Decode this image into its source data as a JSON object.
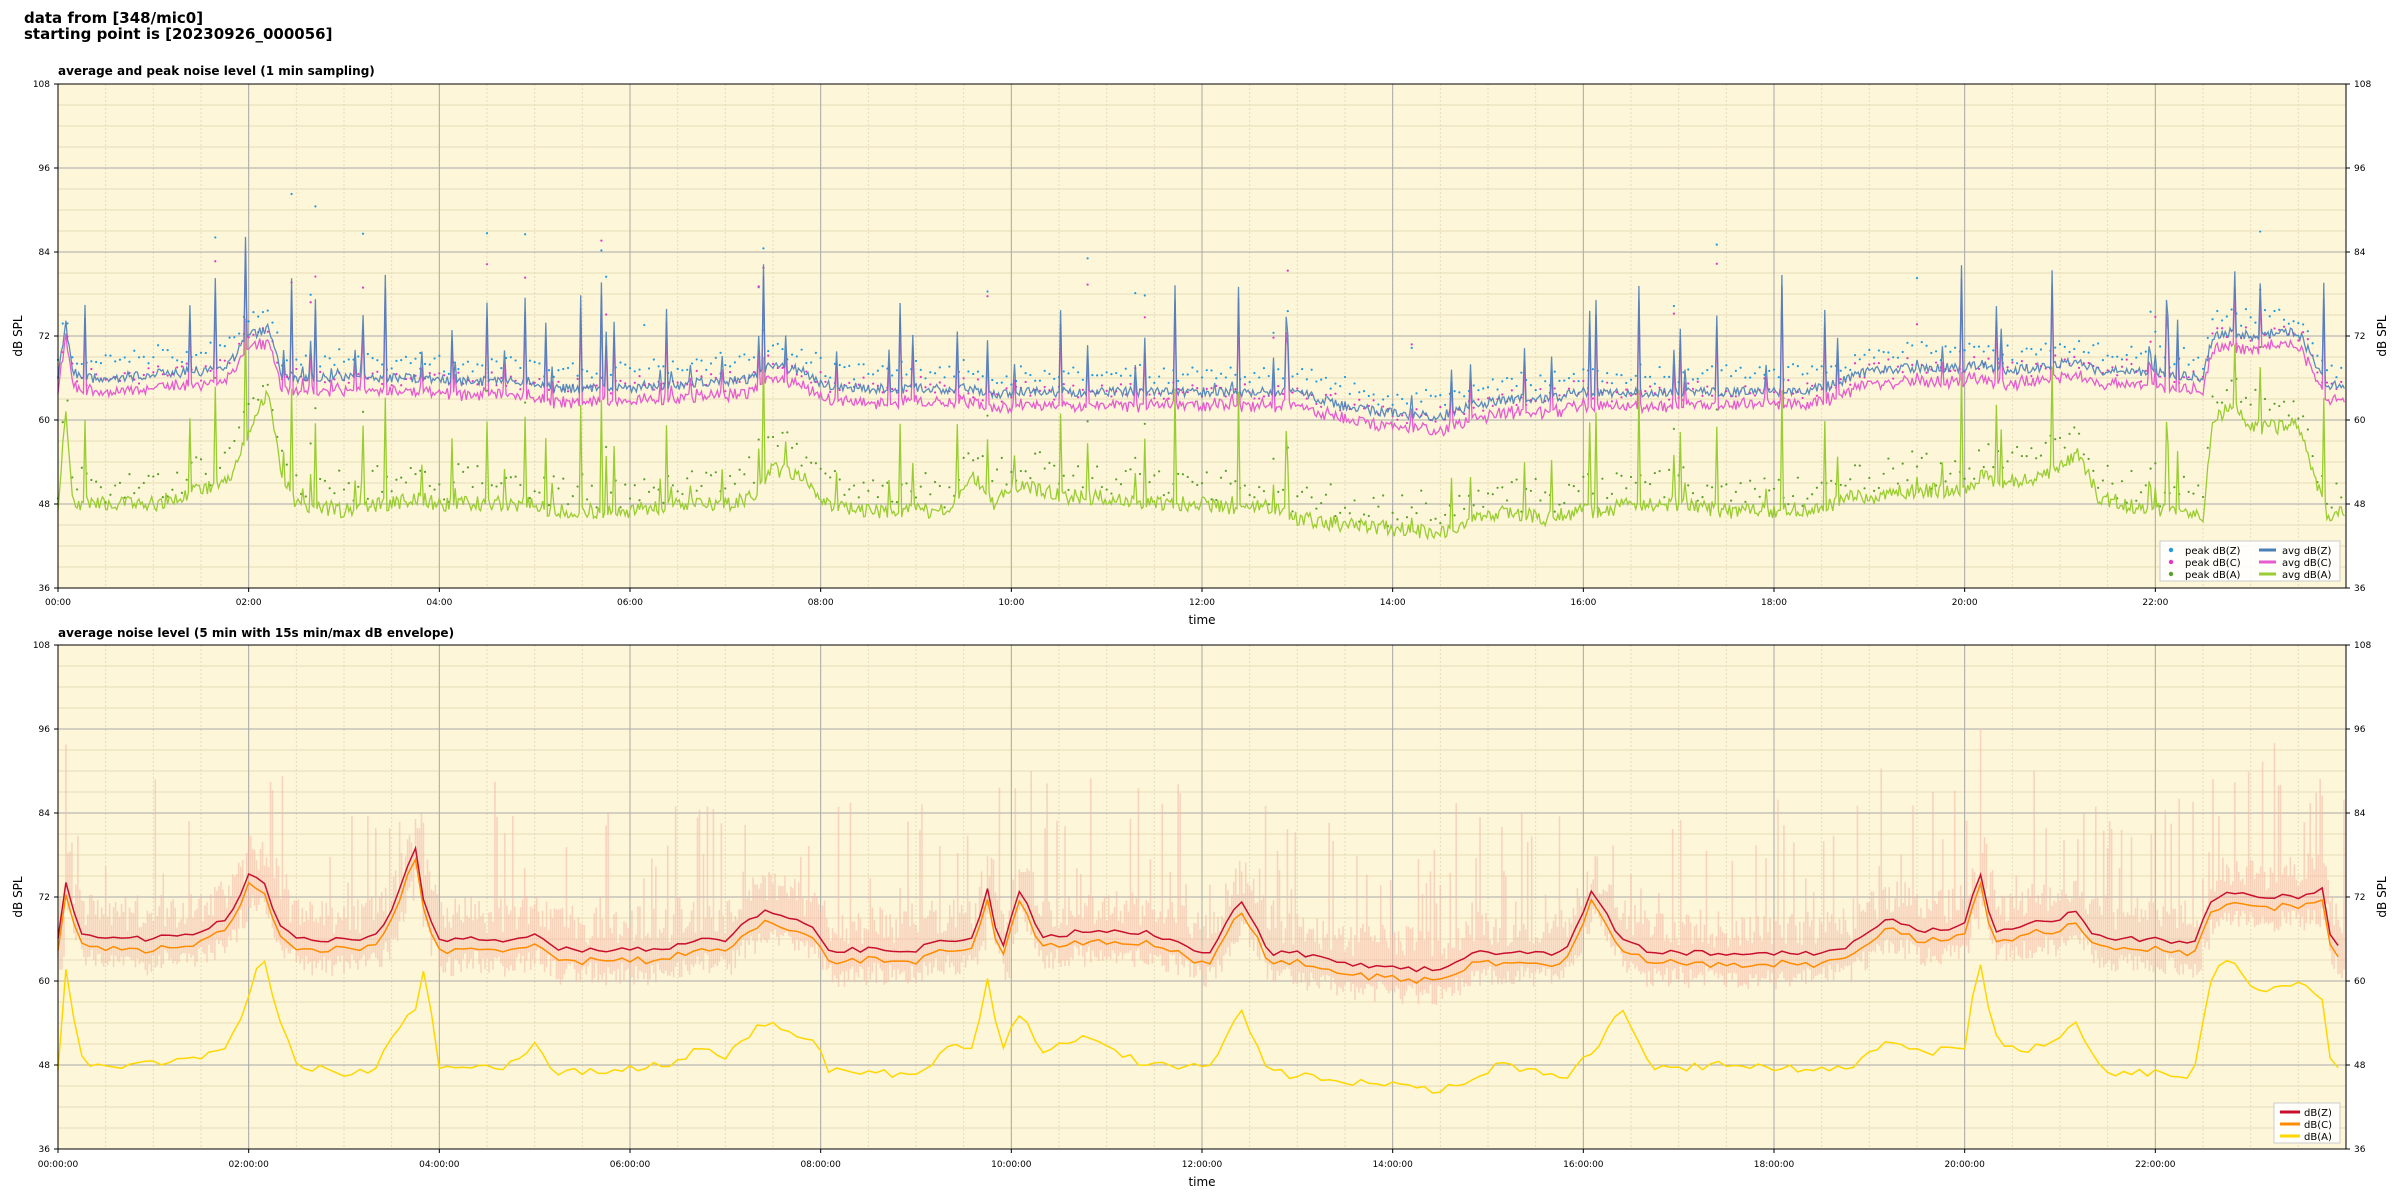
{
  "header": {
    "line1": "data from [348/mic0]",
    "line2": "starting point is [20230926_000056]"
  },
  "colors": {
    "background": "#fdf6d9",
    "grid_major": "#a9a9a9",
    "grid_minor": "#e6dcb7",
    "peak_z": "#1f9be0",
    "peak_c": "#e833c7",
    "peak_a": "#5aa02c",
    "avg_z": "#4a7fb8",
    "avg_c": "#e65ccf",
    "avg_a": "#9acd32",
    "z5": "#c8102e",
    "c5": "#ff8c00",
    "a5": "#ffd700",
    "envelope": "#f4b8a6"
  },
  "chart_data": [
    {
      "type": "line",
      "title": "average and peak noise level (1 min sampling)",
      "xlabel": "time",
      "ylabel": "dB SPL",
      "ylim": [
        36,
        108
      ],
      "xlim_hours": [
        0,
        24
      ],
      "yticks": [
        "36",
        "48",
        "60",
        "72",
        "84",
        "96",
        "108"
      ],
      "xticks": [
        "00:00",
        "02:00",
        "04:00",
        "06:00",
        "08:00",
        "10:00",
        "12:00",
        "14:00",
        "16:00",
        "18:00",
        "20:00",
        "22:00"
      ],
      "grid": true,
      "legend_position": "bottom-right",
      "series": [
        {
          "name": "peak dB(Z)",
          "kind": "scatter"
        },
        {
          "name": "peak dB(C)",
          "kind": "scatter"
        },
        {
          "name": "peak dB(A)",
          "kind": "scatter"
        },
        {
          "name": "avg dB(Z)",
          "kind": "line"
        },
        {
          "name": "avg dB(C)",
          "kind": "line"
        },
        {
          "name": "avg dB(A)",
          "kind": "line"
        }
      ],
      "profile_hours": [
        0,
        0.08,
        0.15,
        0.25,
        0.5,
        1.0,
        1.5,
        1.8,
        2.0,
        2.2,
        2.35,
        2.5,
        3.0,
        3.3,
        3.5,
        3.8,
        3.95,
        4.2,
        4.6,
        5.0,
        5.2,
        5.5,
        6.0,
        6.5,
        6.8,
        7.0,
        7.3,
        7.5,
        7.8,
        8.0,
        8.5,
        9.0,
        9.3,
        9.6,
        9.8,
        10.0,
        10.3,
        10.6,
        11.0,
        11.4,
        11.8,
        12.0,
        12.4,
        12.6,
        13.0,
        13.5,
        14.0,
        14.5,
        14.8,
        15.2,
        15.6,
        16.0,
        16.2,
        16.5,
        17.0,
        17.5,
        18.0,
        18.5,
        18.8,
        19.0,
        19.5,
        20.0,
        20.2,
        20.4,
        20.8,
        21.2,
        21.4,
        21.8,
        22.2,
        22.5,
        22.6,
        22.8,
        23.0,
        23.3,
        23.5,
        23.8,
        24.0
      ],
      "avg_z_profile": [
        66,
        74,
        67,
        66,
        66,
        66.5,
        67,
        68,
        72,
        73,
        66.5,
        66,
        66,
        66,
        66,
        66,
        66,
        65.5,
        65.5,
        65.5,
        64.5,
        64.5,
        64.5,
        65,
        65.5,
        65.5,
        66,
        68,
        67,
        65,
        64.5,
        64.5,
        64.5,
        64.5,
        63.5,
        64,
        64,
        64,
        64,
        64,
        64,
        64,
        64,
        64,
        64,
        62,
        61,
        60.5,
        62,
        63,
        63,
        64,
        64,
        64,
        64,
        64,
        64,
        64.5,
        66,
        67,
        67.5,
        67.5,
        68,
        67,
        67.5,
        68.5,
        67,
        67,
        66.5,
        66,
        72,
        72.5,
        72,
        72.5,
        72.5,
        65,
        65
      ],
      "avg_a_profile": [
        46,
        62,
        49,
        48,
        48,
        48,
        50,
        52,
        58,
        64,
        52,
        48,
        47,
        48,
        48,
        49,
        48,
        48,
        48,
        48,
        47,
        47,
        47,
        48,
        48,
        48,
        49,
        53,
        52,
        48,
        47,
        47,
        47,
        52,
        48,
        51,
        50,
        49,
        49,
        48,
        48,
        48,
        47,
        48,
        46,
        45,
        44.5,
        44,
        45.5,
        47,
        46,
        47,
        47,
        48,
        48,
        47,
        47,
        47.5,
        49,
        49,
        50,
        50,
        52,
        51,
        52,
        55,
        49,
        47.5,
        47,
        46.5,
        60,
        62,
        59,
        59,
        59.5,
        46.5,
        47
      ]
    },
    {
      "type": "line",
      "title": "average noise level (5 min with 15s min/max dB envelope)",
      "xlabel": "time",
      "ylabel": "dB SPL",
      "ylim": [
        36,
        108
      ],
      "xlim_hours": [
        0,
        24
      ],
      "yticks": [
        "36",
        "48",
        "60",
        "72",
        "84",
        "96",
        "108"
      ],
      "xticks": [
        "00:00:00",
        "02:00:00",
        "04:00:00",
        "06:00:00",
        "08:00:00",
        "10:00:00",
        "12:00:00",
        "14:00:00",
        "16:00:00",
        "18:00:00",
        "20:00:00",
        "22:00:00"
      ],
      "grid": true,
      "legend_position": "bottom-right",
      "series": [
        {
          "name": "dB(Z)"
        },
        {
          "name": "dB(C)"
        },
        {
          "name": "dB(A)"
        }
      ],
      "profile_hours": [
        0,
        0.1,
        0.2,
        0.3,
        0.6,
        1.0,
        1.5,
        1.8,
        2.0,
        2.15,
        2.3,
        2.5,
        3.0,
        3.3,
        3.5,
        3.75,
        3.85,
        4.0,
        4.3,
        4.7,
        5.0,
        5.2,
        5.5,
        6.0,
        6.5,
        6.8,
        7.0,
        7.4,
        7.6,
        7.9,
        8.1,
        8.5,
        9.0,
        9.3,
        9.6,
        9.75,
        9.9,
        10.1,
        10.3,
        10.7,
        11.0,
        11.4,
        11.8,
        12.1,
        12.4,
        12.7,
        13.0,
        13.5,
        14.0,
        14.5,
        14.8,
        15.1,
        15.5,
        15.8,
        16.1,
        16.4,
        16.7,
        17.0,
        17.5,
        18.0,
        18.5,
        18.8,
        19.2,
        19.6,
        20.0,
        20.15,
        20.3,
        20.6,
        21.0,
        21.2,
        21.3,
        21.5,
        22.0,
        22.4,
        22.6,
        22.8,
        23.0,
        23.3,
        23.6,
        23.75,
        23.85,
        24.0
      ],
      "z_profile": [
        66,
        76,
        67,
        66.5,
        66,
        66,
        67,
        69,
        75,
        75,
        68,
        66,
        66,
        66,
        70,
        79,
        70,
        66,
        66,
        65.5,
        67,
        64.5,
        64.5,
        64.5,
        65,
        66,
        66,
        70,
        69.5,
        68,
        64.5,
        64.5,
        64.5,
        66,
        66,
        73,
        64,
        74,
        66,
        67,
        67,
        67,
        65,
        64,
        72,
        64,
        64,
        62.5,
        62,
        61.5,
        64,
        64,
        64,
        64,
        73,
        66,
        64,
        64,
        64,
        64,
        64,
        65,
        69,
        67,
        68,
        76,
        67,
        68,
        69,
        70,
        67,
        66,
        66,
        65.5,
        72,
        73,
        72,
        72,
        72,
        73,
        65,
        65
      ],
      "a_profile": [
        47,
        64,
        50,
        48,
        48,
        48.5,
        49,
        51,
        58,
        64,
        55,
        48,
        47,
        47,
        52,
        56,
        62,
        48,
        48,
        47.5,
        51,
        47,
        47,
        47.5,
        48.5,
        51,
        49,
        54,
        53,
        52,
        47,
        47,
        46.5,
        50,
        51,
        60,
        50,
        56,
        50,
        52,
        50.5,
        48,
        48,
        48,
        56,
        47,
        46.5,
        45.5,
        45,
        44.5,
        45.5,
        48,
        47,
        46,
        50,
        56,
        48,
        47.5,
        48,
        47.5,
        47.5,
        48,
        51,
        50,
        50,
        64,
        52,
        50,
        52,
        54,
        50,
        47,
        47,
        46.5,
        61,
        63,
        59,
        59,
        60,
        57,
        47,
        47
      ]
    }
  ]
}
